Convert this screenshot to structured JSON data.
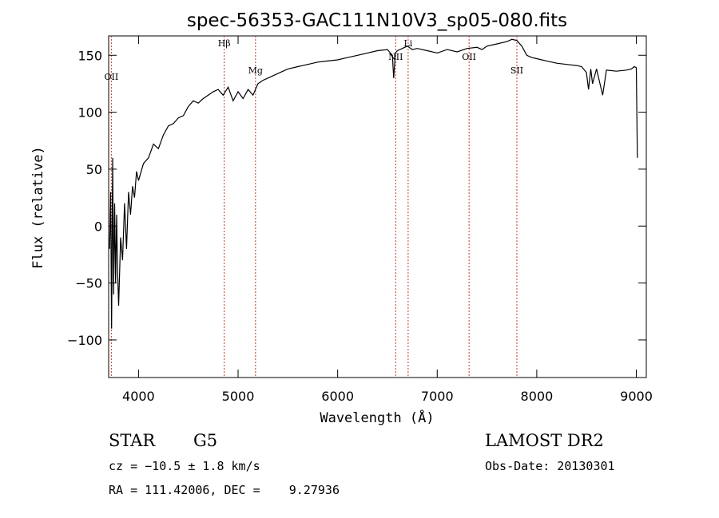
{
  "chart_data": {
    "type": "line",
    "title": "spec-56353-GAC111N10V3_sp05-080.fits",
    "xlabel": "Wavelength (Å)",
    "ylabel": "Flux (relative)",
    "xlim": [
      3700,
      9100
    ],
    "ylim": [
      -133,
      167
    ],
    "xticks": [
      4000,
      5000,
      6000,
      7000,
      8000,
      9000
    ],
    "yticks": [
      -100,
      -50,
      0,
      50,
      100,
      150
    ],
    "series": [
      {
        "x": [
          3710,
          3720,
          3730,
          3740,
          3750,
          3760,
          3770,
          3780,
          3790,
          3800,
          3820,
          3840,
          3860,
          3880,
          3900,
          3920,
          3940,
          3960,
          3980,
          4000,
          4050,
          4100,
          4150,
          4200,
          4250,
          4300,
          4350,
          4400,
          4450,
          4500,
          4550,
          4600,
          4650,
          4700,
          4750,
          4800,
          4850,
          4900,
          4950,
          5000,
          5050,
          5100,
          5150,
          5200,
          5250,
          5300,
          5400,
          5500,
          5600,
          5700,
          5800,
          5900,
          6000,
          6100,
          6200,
          6300,
          6400,
          6500,
          6550,
          6563,
          6580,
          6600,
          6650,
          6700,
          6750,
          6800,
          6900,
          7000,
          7100,
          7200,
          7300,
          7400,
          7450,
          7500,
          7600,
          7700,
          7750,
          7800,
          7850,
          7900,
          7950,
          8000,
          8100,
          8200,
          8300,
          8400,
          8450,
          8498,
          8520,
          8542,
          8560,
          8600,
          8662,
          8700,
          8800,
          8900,
          8950,
          8980,
          9000,
          9010
        ],
        "y": [
          -20,
          30,
          -90,
          60,
          -60,
          20,
          -50,
          10,
          -40,
          -70,
          -10,
          -30,
          20,
          -20,
          30,
          10,
          35,
          25,
          48,
          40,
          55,
          60,
          72,
          68,
          80,
          88,
          90,
          95,
          97,
          105,
          110,
          108,
          112,
          115,
          118,
          120,
          115,
          122,
          110,
          118,
          112,
          120,
          115,
          125,
          128,
          130,
          134,
          138,
          140,
          142,
          144,
          145,
          146,
          148,
          150,
          152,
          154,
          155,
          150,
          130,
          152,
          154,
          156,
          158,
          155,
          156,
          154,
          152,
          155,
          153,
          156,
          157,
          155,
          158,
          160,
          162,
          164,
          163,
          158,
          150,
          148,
          147,
          145,
          143,
          142,
          141,
          140,
          135,
          120,
          138,
          125,
          138,
          115,
          137,
          136,
          137,
          138,
          140,
          139,
          60
        ]
      }
    ],
    "line_markers": [
      {
        "label": "OII",
        "x": 3727
      },
      {
        "label": "Hβ",
        "x": 4861
      },
      {
        "label": "Mg",
        "x": 5175
      },
      {
        "label": "NII",
        "x": 6583
      },
      {
        "label": "Li",
        "x": 6708
      },
      {
        "label": "OII",
        "x": 7320
      },
      {
        "label": "SII",
        "x": 7800
      }
    ],
    "grid": false
  },
  "footer": {
    "object_class": "STAR",
    "subclass": "G5",
    "survey": "LAMOST DR2",
    "redshift": "cz = −10.5 ± 1.8 km/s",
    "obs_date": "Obs-Date: 20130301",
    "coords": "RA = 111.42006, DEC =    9.27936"
  }
}
